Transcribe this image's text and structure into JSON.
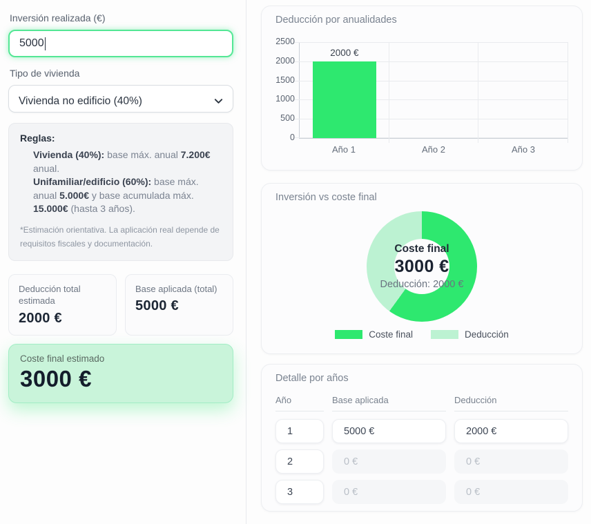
{
  "left_panel": {
    "investment_label": "Inversión realizada (€)",
    "investment_value": "5000",
    "dwelling_label": "Tipo de vivienda",
    "dwelling_selected": "Vivienda no edificio (40%)",
    "rules": {
      "title": "Reglas:",
      "items": [
        {
          "parts": [
            {
              "bold": "Vivienda (40%):"
            },
            {
              "text": " base máx. anual "
            },
            {
              "bold": "7.200€"
            },
            {
              "text": " anual."
            }
          ]
        },
        {
          "parts": [
            {
              "bold": "Unifamiliar/edificio (60%):"
            },
            {
              "text": " base máx. anual "
            },
            {
              "bold": "5.000€"
            },
            {
              "text": " y base acumulada máx. "
            },
            {
              "bold": "15.000€"
            },
            {
              "text": " (hasta 3 años)."
            }
          ]
        }
      ],
      "footnote": "*Estimación orientativa. La aplicación real depende de requisitos fiscales y documentación."
    },
    "stats": [
      {
        "label": "Deducción total estimada",
        "value": "2000 €"
      },
      {
        "label": "Base aplicada (total)",
        "value": "5000 €"
      }
    ],
    "result": {
      "label": "Coste final estimado",
      "value": "3000 €"
    }
  },
  "colors": {
    "accent_green": "#2ee86f",
    "light_green": "#bcf2d2",
    "input_border_green": "#54e795",
    "result_card_bg": "#c9f4da"
  },
  "chart_data": [
    {
      "type": "bar",
      "title": "Deducción por anualidades",
      "categories": [
        "Año 1",
        "Año 2",
        "Año 3"
      ],
      "values": [
        2000,
        0,
        0
      ],
      "data_labels": [
        "2000 €",
        "",
        ""
      ],
      "yticks": [
        0,
        500,
        1000,
        1500,
        2000,
        2500
      ],
      "ylim": [
        0,
        2500
      ],
      "bar_color": "#2ee86f",
      "grid": "on",
      "xlabel": "",
      "ylabel": ""
    },
    {
      "type": "pie",
      "title": "Inversión vs coste final",
      "labels": [
        "Coste final",
        "Deducción"
      ],
      "values": [
        3000,
        2000
      ],
      "colors": [
        "#2ee86f",
        "#bcf2d2"
      ],
      "center": {
        "title": "Coste final",
        "value": "3000 €",
        "subtitle": "Deducción: 2000 €"
      },
      "legend_position": "bottom"
    },
    {
      "type": "table",
      "title": "Detalle por años",
      "columns": [
        "Año",
        "Base aplicada",
        "Deducción"
      ],
      "rows": [
        [
          "1",
          "5000 €",
          "2000 €"
        ],
        [
          "2",
          "0 €",
          "0 €"
        ],
        [
          "3",
          "0 €",
          "0 €"
        ]
      ]
    }
  ]
}
